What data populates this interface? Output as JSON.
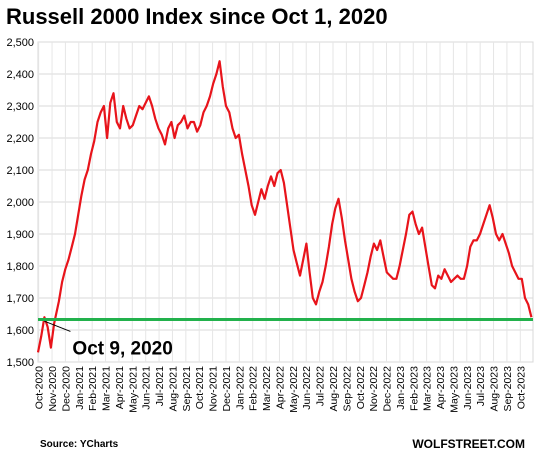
{
  "chart_data": {
    "type": "line",
    "title": "Russell 2000 Index since Oct 1, 2020",
    "xlabel": "",
    "ylabel": "",
    "ylim": [
      1500,
      2500
    ],
    "yticks": [
      1500,
      1600,
      1700,
      1800,
      1900,
      2000,
      2100,
      2200,
      2300,
      2400,
      2500
    ],
    "ytick_labels": [
      "1,500",
      "1,600",
      "1,700",
      "1,800",
      "1,900",
      "2,000",
      "2,100",
      "2,200",
      "2,300",
      "2,400",
      "2,500"
    ],
    "xlim": [
      2020.75,
      2023.83
    ],
    "xticks": [
      "Oct-2020",
      "Nov-2020",
      "Dec-2020",
      "Jan-2021",
      "Feb-2021",
      "Mar-2021",
      "Apr-2021",
      "May-2021",
      "Jun-2021",
      "Jul-2021",
      "Aug-2021",
      "Sep-2021",
      "Oct-2021",
      "Nov-2021",
      "Dec-2021",
      "Jan-2022",
      "Feb-2022",
      "Mar-2022",
      "Apr-2022",
      "May-2022",
      "Jun-2022",
      "Jul-2022",
      "Aug-2022",
      "Sep-2022",
      "Oct-2022",
      "Nov-2022",
      "Dec-2022",
      "Jan-2023",
      "Feb-2023",
      "Mar-2023",
      "Apr-2023",
      "May-2023",
      "Jun-2023",
      "Jul-2023",
      "Aug-2023",
      "Sep-2023",
      "Oct-2023"
    ],
    "grid": true,
    "series": [
      {
        "color": "#e8141b",
        "points": [
          [
            2020.75,
            1530
          ],
          [
            2020.77,
            1580
          ],
          [
            2020.79,
            1640
          ],
          [
            2020.81,
            1610
          ],
          [
            2020.83,
            1545
          ],
          [
            2020.85,
            1620
          ],
          [
            2020.88,
            1690
          ],
          [
            2020.9,
            1750
          ],
          [
            2020.92,
            1790
          ],
          [
            2020.94,
            1820
          ],
          [
            2020.96,
            1860
          ],
          [
            2020.98,
            1900
          ],
          [
            2021.0,
            1960
          ],
          [
            2021.02,
            2020
          ],
          [
            2021.04,
            2070
          ],
          [
            2021.06,
            2100
          ],
          [
            2021.08,
            2150
          ],
          [
            2021.1,
            2190
          ],
          [
            2021.12,
            2250
          ],
          [
            2021.14,
            2280
          ],
          [
            2021.16,
            2300
          ],
          [
            2021.18,
            2200
          ],
          [
            2021.2,
            2310
          ],
          [
            2021.22,
            2340
          ],
          [
            2021.24,
            2250
          ],
          [
            2021.26,
            2230
          ],
          [
            2021.28,
            2300
          ],
          [
            2021.3,
            2260
          ],
          [
            2021.32,
            2230
          ],
          [
            2021.34,
            2240
          ],
          [
            2021.36,
            2270
          ],
          [
            2021.38,
            2300
          ],
          [
            2021.4,
            2290
          ],
          [
            2021.42,
            2310
          ],
          [
            2021.44,
            2330
          ],
          [
            2021.46,
            2300
          ],
          [
            2021.48,
            2260
          ],
          [
            2021.5,
            2230
          ],
          [
            2021.52,
            2210
          ],
          [
            2021.54,
            2180
          ],
          [
            2021.56,
            2230
          ],
          [
            2021.58,
            2250
          ],
          [
            2021.6,
            2200
          ],
          [
            2021.62,
            2240
          ],
          [
            2021.64,
            2250
          ],
          [
            2021.66,
            2270
          ],
          [
            2021.68,
            2230
          ],
          [
            2021.7,
            2250
          ],
          [
            2021.72,
            2250
          ],
          [
            2021.74,
            2220
          ],
          [
            2021.76,
            2240
          ],
          [
            2021.78,
            2280
          ],
          [
            2021.8,
            2300
          ],
          [
            2021.82,
            2330
          ],
          [
            2021.84,
            2370
          ],
          [
            2021.86,
            2400
          ],
          [
            2021.88,
            2440
          ],
          [
            2021.9,
            2360
          ],
          [
            2021.92,
            2300
          ],
          [
            2021.94,
            2280
          ],
          [
            2021.96,
            2230
          ],
          [
            2021.98,
            2200
          ],
          [
            2022.0,
            2210
          ],
          [
            2022.02,
            2150
          ],
          [
            2022.04,
            2100
          ],
          [
            2022.06,
            2050
          ],
          [
            2022.08,
            1990
          ],
          [
            2022.1,
            1960
          ],
          [
            2022.12,
            2000
          ],
          [
            2022.14,
            2040
          ],
          [
            2022.16,
            2010
          ],
          [
            2022.18,
            2050
          ],
          [
            2022.2,
            2080
          ],
          [
            2022.22,
            2050
          ],
          [
            2022.24,
            2090
          ],
          [
            2022.26,
            2100
          ],
          [
            2022.28,
            2060
          ],
          [
            2022.3,
            1990
          ],
          [
            2022.32,
            1920
          ],
          [
            2022.34,
            1850
          ],
          [
            2022.36,
            1810
          ],
          [
            2022.38,
            1770
          ],
          [
            2022.4,
            1820
          ],
          [
            2022.42,
            1870
          ],
          [
            2022.44,
            1780
          ],
          [
            2022.46,
            1700
          ],
          [
            2022.48,
            1680
          ],
          [
            2022.5,
            1720
          ],
          [
            2022.52,
            1750
          ],
          [
            2022.54,
            1800
          ],
          [
            2022.56,
            1860
          ],
          [
            2022.58,
            1930
          ],
          [
            2022.6,
            1980
          ],
          [
            2022.62,
            2010
          ],
          [
            2022.64,
            1950
          ],
          [
            2022.66,
            1880
          ],
          [
            2022.68,
            1820
          ],
          [
            2022.7,
            1760
          ],
          [
            2022.72,
            1720
          ],
          [
            2022.74,
            1690
          ],
          [
            2022.76,
            1700
          ],
          [
            2022.78,
            1740
          ],
          [
            2022.8,
            1780
          ],
          [
            2022.82,
            1830
          ],
          [
            2022.84,
            1870
          ],
          [
            2022.86,
            1850
          ],
          [
            2022.88,
            1880
          ],
          [
            2022.9,
            1830
          ],
          [
            2022.92,
            1780
          ],
          [
            2022.94,
            1770
          ],
          [
            2022.96,
            1760
          ],
          [
            2022.98,
            1760
          ],
          [
            2023.0,
            1800
          ],
          [
            2023.02,
            1850
          ],
          [
            2023.04,
            1900
          ],
          [
            2023.06,
            1960
          ],
          [
            2023.08,
            1970
          ],
          [
            2023.1,
            1930
          ],
          [
            2023.12,
            1900
          ],
          [
            2023.14,
            1920
          ],
          [
            2023.16,
            1860
          ],
          [
            2023.18,
            1800
          ],
          [
            2023.2,
            1740
          ],
          [
            2023.22,
            1730
          ],
          [
            2023.24,
            1770
          ],
          [
            2023.26,
            1760
          ],
          [
            2023.28,
            1790
          ],
          [
            2023.3,
            1770
          ],
          [
            2023.32,
            1750
          ],
          [
            2023.34,
            1760
          ],
          [
            2023.36,
            1770
          ],
          [
            2023.38,
            1760
          ],
          [
            2023.4,
            1760
          ],
          [
            2023.42,
            1800
          ],
          [
            2023.44,
            1860
          ],
          [
            2023.46,
            1880
          ],
          [
            2023.48,
            1880
          ],
          [
            2023.5,
            1900
          ],
          [
            2023.52,
            1930
          ],
          [
            2023.54,
            1960
          ],
          [
            2023.56,
            1990
          ],
          [
            2023.58,
            1950
          ],
          [
            2023.6,
            1900
          ],
          [
            2023.62,
            1880
          ],
          [
            2023.64,
            1900
          ],
          [
            2023.66,
            1870
          ],
          [
            2023.68,
            1840
          ],
          [
            2023.7,
            1800
          ],
          [
            2023.72,
            1780
          ],
          [
            2023.74,
            1760
          ],
          [
            2023.76,
            1760
          ],
          [
            2023.78,
            1700
          ],
          [
            2023.8,
            1680
          ],
          [
            2023.82,
            1640
          ]
        ]
      }
    ],
    "annotation": {
      "label": "Oct 9, 2020",
      "reference_value": 1633,
      "line_color": "#22b14c"
    }
  },
  "footer": {
    "source": "Source: YCharts",
    "brand": "WOLFSTREET.COM"
  }
}
